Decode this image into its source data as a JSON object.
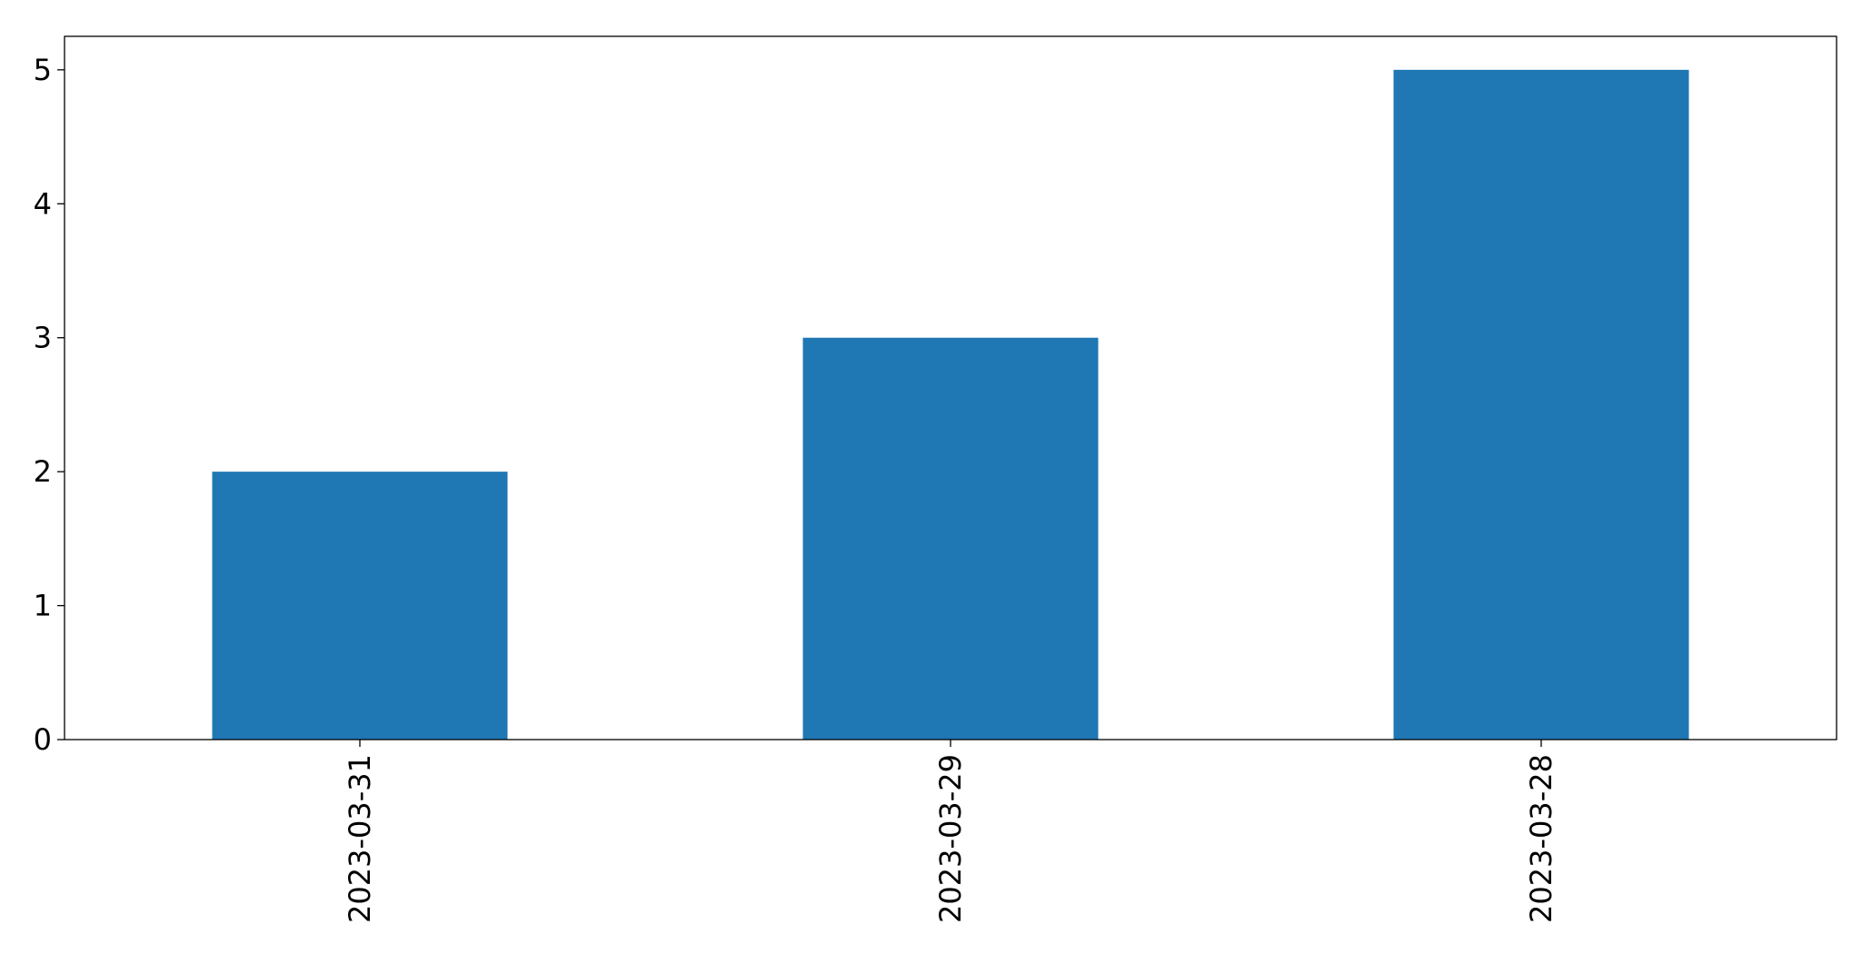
{
  "chart_data": {
    "type": "bar",
    "categories": [
      "2023-03-31",
      "2023-03-29",
      "2023-03-28"
    ],
    "values": [
      2,
      3,
      5
    ],
    "title": "",
    "xlabel": "",
    "ylabel": "",
    "ylim": [
      0,
      5.25
    ],
    "yticks": [
      0,
      1,
      2,
      3,
      4,
      5
    ],
    "grid": false,
    "legend": "none",
    "bar_color": "#1f77b4",
    "x_tick_rotation": "vertical"
  }
}
